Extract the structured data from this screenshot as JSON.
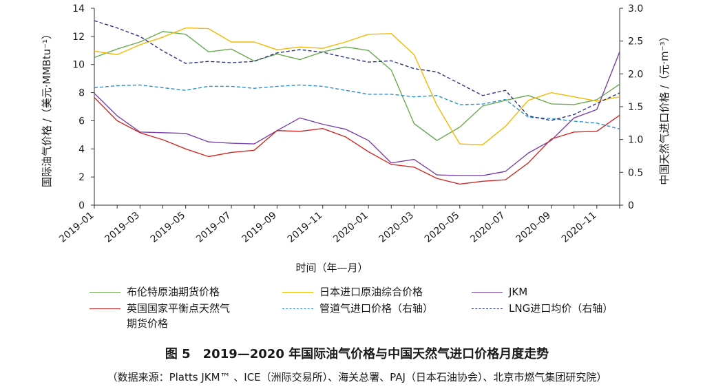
{
  "chart_data": {
    "type": "line",
    "ylabel_left": "国际油气价格 /（美元·MMBtu⁻¹）",
    "ylabel_right": "中国天然气进口价格 /（元·m⁻³）",
    "xlabel": "时间（年—月）",
    "ylim_left": [
      0,
      14
    ],
    "ylim_right": [
      0,
      3.0
    ],
    "yticks_left": [
      "0",
      "2",
      "4",
      "6",
      "8",
      "10",
      "12",
      "14"
    ],
    "yticks_right": [
      "0",
      "0.5",
      "1.0",
      "1.5",
      "2.0",
      "2.5",
      "3.0"
    ],
    "xticks": [
      "2019–01",
      "2019–03",
      "2019–05",
      "2019–07",
      "2019–09",
      "2019–11",
      "2020–01",
      "2020–03",
      "2020–05",
      "2020–07",
      "2020–09",
      "2020–11"
    ],
    "categories": [
      "2019–01",
      "2019–02",
      "2019–03",
      "2019–04",
      "2019–05",
      "2019–06",
      "2019–07",
      "2019–08",
      "2019–09",
      "2019–10",
      "2019–11",
      "2019–12",
      "2020–01",
      "2020–02",
      "2020–03",
      "2020–04",
      "2020–05",
      "2020–06",
      "2020–07",
      "2020–08",
      "2020–09",
      "2020–10",
      "2020–11",
      "2020–12"
    ],
    "grid": false,
    "legend_position": "bottom",
    "series": [
      {
        "name": "布伦特原油期货价格",
        "axis": "left",
        "color": "#6aaa4e",
        "dash": "solid",
        "values": [
          10.5,
          11.1,
          11.6,
          12.35,
          12.15,
          10.9,
          11.1,
          10.25,
          10.75,
          10.35,
          10.9,
          11.25,
          11.0,
          9.6,
          5.8,
          4.6,
          5.55,
          7.05,
          7.45,
          7.8,
          7.2,
          7.15,
          7.5,
          8.6
        ]
      },
      {
        "name": "日本进口原油综合价格",
        "axis": "left",
        "color": "#f5b800",
        "dash": "solid",
        "values": [
          10.95,
          10.7,
          11.4,
          11.95,
          12.6,
          12.55,
          11.6,
          11.6,
          11.05,
          11.25,
          11.15,
          11.6,
          12.15,
          12.2,
          10.7,
          7.1,
          4.35,
          4.3,
          5.6,
          7.45,
          8.0,
          7.7,
          7.4,
          7.7
        ]
      },
      {
        "name": "JKM",
        "axis": "left",
        "color": "#7a40a8",
        "dash": "solid",
        "values": [
          7.95,
          6.35,
          5.2,
          5.15,
          5.1,
          4.5,
          4.4,
          4.35,
          5.3,
          6.2,
          5.75,
          5.4,
          4.6,
          3.0,
          3.25,
          2.15,
          2.1,
          2.1,
          2.4,
          3.7,
          4.6,
          6.2,
          6.8,
          10.9
        ]
      },
      {
        "name": "英国国家平衡点天然气期货价格",
        "axis": "left",
        "color": "#cc2a26",
        "dash": "solid",
        "values": [
          7.65,
          6.0,
          5.15,
          4.65,
          4.0,
          3.45,
          3.75,
          3.9,
          5.3,
          5.25,
          5.45,
          4.85,
          3.8,
          2.9,
          2.7,
          1.9,
          1.5,
          1.7,
          1.8,
          3.0,
          4.7,
          5.2,
          5.25,
          6.4
        ]
      },
      {
        "name": "管道气进口价格（右轴）",
        "axis": "right",
        "color": "#2a8fd0",
        "dash": "dashed",
        "values": [
          1.79,
          1.82,
          1.83,
          1.79,
          1.75,
          1.81,
          1.81,
          1.78,
          1.81,
          1.83,
          1.81,
          1.75,
          1.69,
          1.69,
          1.65,
          1.67,
          1.53,
          1.54,
          1.61,
          1.34,
          1.32,
          1.28,
          1.25,
          1.16
        ]
      },
      {
        "name": "LNG进口均价（右轴）",
        "axis": "right",
        "color": "#2a3380",
        "dash": "dashed",
        "values": [
          2.81,
          2.7,
          2.57,
          2.35,
          2.16,
          2.19,
          2.17,
          2.19,
          2.32,
          2.37,
          2.33,
          2.25,
          2.18,
          2.2,
          2.08,
          2.03,
          1.85,
          1.67,
          1.75,
          1.36,
          1.29,
          1.38,
          1.55,
          1.71
        ]
      }
    ]
  },
  "legend": {
    "items": [
      {
        "label": "布伦特原油期货价格"
      },
      {
        "label": "日本进口原油综合价格"
      },
      {
        "label": "JKM"
      },
      {
        "label": "英国国家平衡点天然气"
      },
      {
        "label": "管道气进口价格（右轴）"
      },
      {
        "label": "LNG进口均价（右轴）"
      }
    ],
    "item3_line2": "期货价格"
  },
  "caption": {
    "title": "图 5　2019—2020 年国际油气价格与中国天然气进口价格月度走势",
    "source": "（数据来源：Platts JKM™ 、ICE（洲际交易所）、海关总署、PAJ（日本石油协会）、北京市燃气集团研究院）"
  }
}
